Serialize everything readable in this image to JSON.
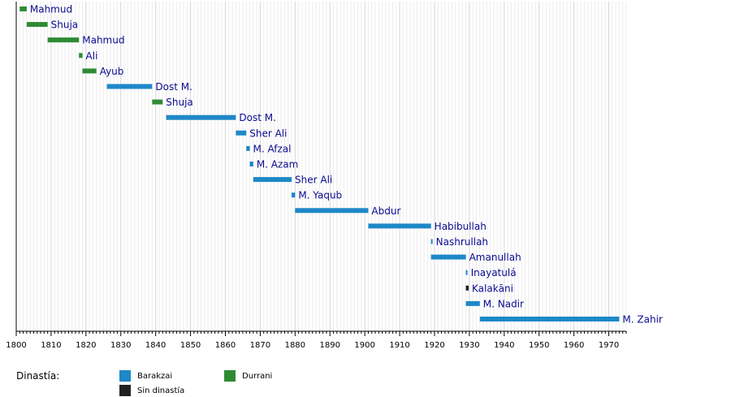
{
  "chart_data": {
    "type": "timeline",
    "x_range": [
      1800,
      1975
    ],
    "x_ticks": [
      1800,
      1810,
      1820,
      1830,
      1840,
      1850,
      1860,
      1870,
      1880,
      1890,
      1900,
      1910,
      1920,
      1930,
      1940,
      1950,
      1960,
      1970
    ],
    "grid": "minor yearly gridlines",
    "colors": {
      "Barakzai": "#1e88c8",
      "Durrani": "#2e8b34",
      "Sin dinastía": "#222222"
    },
    "rulers": [
      {
        "label": "Mahmud",
        "start": 1801,
        "end": 1803,
        "dynasty": "Durrani"
      },
      {
        "label": "Shuja",
        "start": 1803,
        "end": 1809,
        "dynasty": "Durrani"
      },
      {
        "label": "Mahmud",
        "start": 1809,
        "end": 1818,
        "dynasty": "Durrani"
      },
      {
        "label": "Ali",
        "start": 1818,
        "end": 1819,
        "dynasty": "Durrani"
      },
      {
        "label": "Ayub",
        "start": 1819,
        "end": 1823,
        "dynasty": "Durrani"
      },
      {
        "label": "Dost M.",
        "start": 1826,
        "end": 1839,
        "dynasty": "Barakzai"
      },
      {
        "label": "Shuja",
        "start": 1839,
        "end": 1842,
        "dynasty": "Durrani"
      },
      {
        "label": "Dost M.",
        "start": 1843,
        "end": 1863,
        "dynasty": "Barakzai"
      },
      {
        "label": "Sher Ali",
        "start": 1863,
        "end": 1866,
        "dynasty": "Barakzai"
      },
      {
        "label": "M. Afzal",
        "start": 1866,
        "end": 1867,
        "dynasty": "Barakzai"
      },
      {
        "label": "M. Azam",
        "start": 1867,
        "end": 1868,
        "dynasty": "Barakzai"
      },
      {
        "label": "Sher Ali",
        "start": 1868,
        "end": 1879,
        "dynasty": "Barakzai"
      },
      {
        "label": "M. Yaqub",
        "start": 1879,
        "end": 1880,
        "dynasty": "Barakzai"
      },
      {
        "label": "Abdur",
        "start": 1880,
        "end": 1901,
        "dynasty": "Barakzai"
      },
      {
        "label": "Habibullah",
        "start": 1901,
        "end": 1919,
        "dynasty": "Barakzai"
      },
      {
        "label": "Nashrullah",
        "start": 1919,
        "end": 1919.3,
        "dynasty": "Barakzai"
      },
      {
        "label": "Amanullah",
        "start": 1919,
        "end": 1929,
        "dynasty": "Barakzai"
      },
      {
        "label": "Inayatulá",
        "start": 1929,
        "end": 1929.3,
        "dynasty": "Barakzai"
      },
      {
        "label": "Kalakāni",
        "start": 1929,
        "end": 1929.8,
        "dynasty": "Sin dinastía"
      },
      {
        "label": "M. Nadir",
        "start": 1929,
        "end": 1933,
        "dynasty": "Barakzai"
      },
      {
        "label": "M. Zahir",
        "start": 1933,
        "end": 1973,
        "dynasty": "Barakzai"
      }
    ]
  },
  "legend": {
    "title": "Dinastía:",
    "items": [
      {
        "label": "Barakzai",
        "color": "#1e88c8"
      },
      {
        "label": "Durrani",
        "color": "#2e8b34"
      },
      {
        "label": "Sin dinastía",
        "color": "#222222"
      }
    ]
  }
}
